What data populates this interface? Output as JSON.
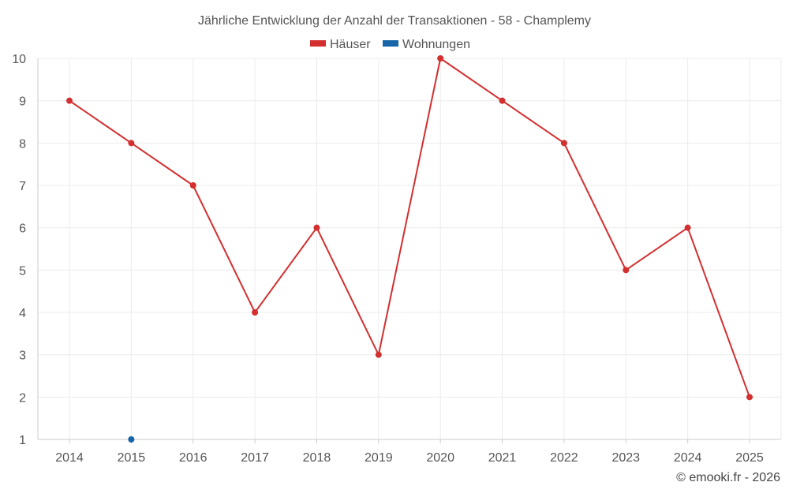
{
  "chart_data": {
    "type": "line",
    "title": "Jährliche Entwicklung der Anzahl der Transaktionen - 58 - Champlemy",
    "x": [
      "2014",
      "2015",
      "2016",
      "2017",
      "2018",
      "2019",
      "2020",
      "2021",
      "2022",
      "2023",
      "2024",
      "2025"
    ],
    "ylim": [
      1,
      10
    ],
    "yticks": [
      "1",
      "2",
      "3",
      "4",
      "5",
      "6",
      "7",
      "8",
      "9",
      "10"
    ],
    "grid": true,
    "legend_position": "top-center",
    "series": [
      {
        "name": "Häuser",
        "color": "#d32f2f",
        "values": [
          9,
          8,
          7,
          4,
          6,
          3,
          10,
          9,
          8,
          5,
          6,
          2
        ]
      },
      {
        "name": "Wohnungen",
        "color": "#1565a8",
        "values": [
          null,
          1,
          null,
          null,
          null,
          null,
          null,
          null,
          null,
          null,
          null,
          null
        ]
      }
    ],
    "credit": "© emooki.fr - 2026"
  }
}
